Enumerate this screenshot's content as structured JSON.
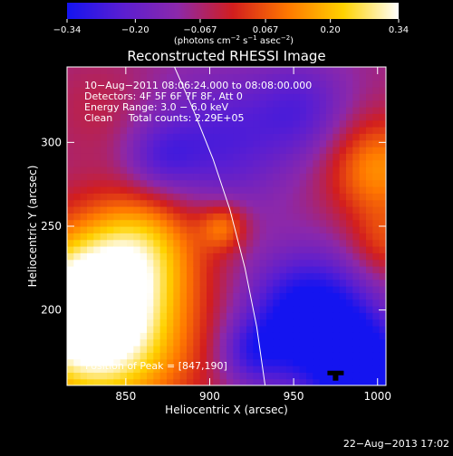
{
  "chart_data": {
    "type": "heatmap",
    "title": "Reconstructed RHESSI Image",
    "xlabel": "Heliocentric X (arcsec)",
    "ylabel": "Heliocentric Y (arcsec)",
    "xlim": [
      815,
      1005
    ],
    "ylim": [
      155,
      345
    ],
    "x_ticks": [
      850,
      900,
      950,
      1000
    ],
    "y_ticks": [
      200,
      250,
      300
    ],
    "colorbar": {
      "ticks": [
        "−0.34",
        "−0.20",
        "−0.067",
        "0.067",
        "0.20",
        "0.34"
      ],
      "values": [
        -0.34,
        -0.2,
        -0.067,
        0.067,
        0.2,
        0.34
      ],
      "range": [
        -0.34,
        0.34
      ],
      "colormap": "blue-purple-red-yellow-white",
      "colors": [
        "#1414f0",
        "#5a1ed2",
        "#8c28aa",
        "#d21e1e",
        "#ff7800",
        "#ffd200",
        "#ffffff"
      ]
    },
    "info_lines": [
      "10−Aug−2011 08:06:24.000 to 08:08:00.000",
      "Detectors: 4F 5F 6F 7F 8F, Att 0",
      "Energy Range: 3.0 − 6.0 keV",
      "Clean     Total counts: 2.29E+05"
    ],
    "peak_text": "Position of Peak = [847,190]",
    "peak": {
      "x": 847,
      "y": 190
    },
    "limb_curve": [
      [
        879,
        345
      ],
      [
        890,
        320
      ],
      [
        902,
        290
      ],
      [
        912,
        260
      ],
      [
        921,
        225
      ],
      [
        928,
        190
      ],
      [
        933,
        155
      ]
    ],
    "beam_marker": {
      "x": 975,
      "y": 160
    },
    "blobs": [
      {
        "x": 840,
        "y": 185,
        "r": 52,
        "v": 0.34
      },
      {
        "x": 822,
        "y": 205,
        "r": 40,
        "v": 0.32
      },
      {
        "x": 860,
        "y": 240,
        "r": 34,
        "v": 0.22
      },
      {
        "x": 908,
        "y": 250,
        "r": 14,
        "v": 0.18
      },
      {
        "x": 1000,
        "y": 285,
        "r": 30,
        "v": 0.22
      },
      {
        "x": 1005,
        "y": 240,
        "r": 22,
        "v": 0.12
      },
      {
        "x": 835,
        "y": 320,
        "r": 28,
        "v": 0.05
      },
      {
        "x": 960,
        "y": 195,
        "r": 36,
        "v": -0.34
      },
      {
        "x": 990,
        "y": 165,
        "r": 28,
        "v": -0.32
      },
      {
        "x": 925,
        "y": 175,
        "r": 20,
        "v": -0.16
      },
      {
        "x": 905,
        "y": 300,
        "r": 40,
        "v": -0.16
      },
      {
        "x": 955,
        "y": 320,
        "r": 30,
        "v": -0.14
      },
      {
        "x": 870,
        "y": 290,
        "r": 22,
        "v": -0.12
      }
    ]
  },
  "footer": {
    "timestamp": "22−Aug−2013 17:02"
  }
}
